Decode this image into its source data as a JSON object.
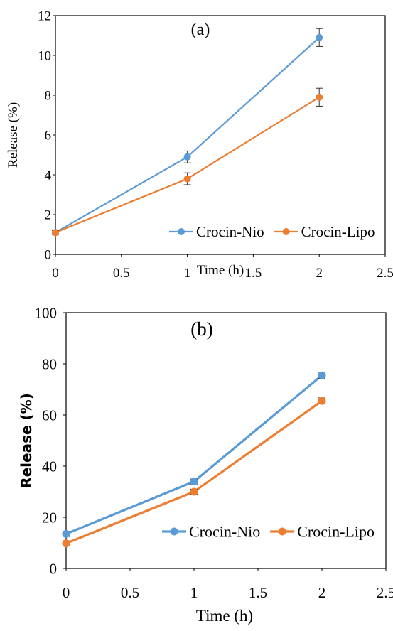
{
  "chart_data": [
    {
      "type": "line",
      "panel_label": "(a)",
      "xlabel": "Time (h)",
      "ylabel": "Release (%)",
      "xlim": [
        0,
        2.5
      ],
      "ylim": [
        0,
        12
      ],
      "xticks": [
        "0",
        "0.5",
        "1",
        "1.5",
        "2",
        "2.5"
      ],
      "yticks": [
        "0",
        "2",
        "4",
        "6",
        "8",
        "10",
        "12"
      ],
      "legend_position": "bottom-right",
      "series": [
        {
          "name": "Crocin-Nio",
          "color": "#5B9BD5",
          "x": [
            0,
            1,
            2
          ],
          "y": [
            1.1,
            4.9,
            10.9
          ],
          "err": [
            0.1,
            0.3,
            0.45
          ]
        },
        {
          "name": "Crocin-Lipo",
          "color": "#ED7D31",
          "x": [
            0,
            1,
            2
          ],
          "y": [
            1.1,
            3.8,
            7.9
          ],
          "err": [
            0.1,
            0.3,
            0.45
          ]
        }
      ]
    },
    {
      "type": "line",
      "panel_label": "(b)",
      "xlabel": "Time (h)",
      "ylabel": "Release (%)",
      "xlim": [
        0,
        2.5
      ],
      "ylim": [
        0,
        100
      ],
      "xticks": [
        "0",
        "0.5",
        "1",
        "1.5",
        "2",
        "2.5"
      ],
      "yticks": [
        "0",
        "20",
        "40",
        "60",
        "80",
        "100"
      ],
      "legend_position": "bottom-right",
      "series": [
        {
          "name": "Crocin-Nio",
          "color": "#5B9BD5",
          "x": [
            0,
            1,
            2
          ],
          "y": [
            13.5,
            34,
            75.5
          ],
          "err": [
            1,
            1,
            1.2
          ]
        },
        {
          "name": "Crocin-Lipo",
          "color": "#ED7D31",
          "x": [
            0,
            1,
            2
          ],
          "y": [
            9.8,
            30,
            65.5
          ],
          "err": [
            1,
            1,
            1.2
          ]
        }
      ]
    }
  ]
}
